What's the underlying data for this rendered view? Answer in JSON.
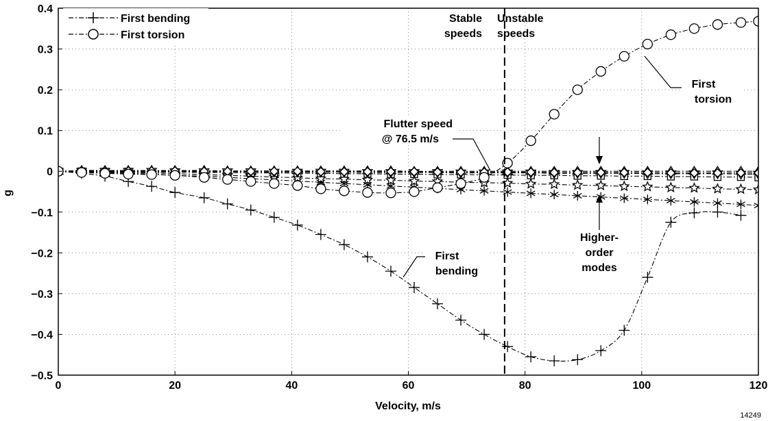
{
  "chart_data": {
    "type": "line",
    "xlabel": "Velocity, m/s",
    "ylabel": "g",
    "xlim": [
      0,
      120
    ],
    "ylim": [
      -0.5,
      0.4
    ],
    "x_ticks": [
      "0",
      "20",
      "40",
      "60",
      "80",
      "100",
      "120"
    ],
    "y_ticks": [
      "0.4",
      "0.3",
      "0.2",
      "0.1",
      "0",
      "−0.1",
      "−0.2",
      "−0.3",
      "−0.4",
      "−0.5"
    ],
    "grid": true,
    "legend_position": "top-left",
    "figure_number": "14249",
    "flutter_speed": 76.5,
    "series": [
      {
        "name": "First bending",
        "marker": "plus",
        "x": [
          0,
          4,
          8,
          12,
          16,
          20,
          25,
          29,
          33,
          37,
          41,
          45,
          49,
          53,
          57,
          61,
          65,
          69,
          73,
          77,
          81,
          85,
          89,
          93,
          97,
          101,
          105,
          109,
          113,
          117
        ],
        "y": [
          0,
          -0.005,
          -0.012,
          -0.025,
          -0.037,
          -0.052,
          -0.065,
          -0.08,
          -0.095,
          -0.113,
          -0.132,
          -0.155,
          -0.18,
          -0.21,
          -0.245,
          -0.285,
          -0.325,
          -0.365,
          -0.4,
          -0.43,
          -0.455,
          -0.465,
          -0.462,
          -0.44,
          -0.39,
          -0.26,
          -0.125,
          -0.102,
          -0.1,
          -0.108
        ]
      },
      {
        "name": "First torsion",
        "marker": "circle",
        "x": [
          0,
          4,
          8,
          12,
          16,
          20,
          25,
          29,
          33,
          37,
          41,
          45,
          49,
          53,
          57,
          61,
          65,
          69,
          73,
          77,
          81,
          85,
          89,
          93,
          97,
          101,
          105,
          109,
          113,
          117,
          120
        ],
        "y": [
          0,
          -0.003,
          -0.005,
          -0.007,
          -0.008,
          -0.01,
          -0.015,
          -0.02,
          -0.025,
          -0.03,
          -0.035,
          -0.043,
          -0.048,
          -0.052,
          -0.053,
          -0.05,
          -0.04,
          -0.03,
          -0.015,
          0.02,
          0.075,
          0.14,
          0.2,
          0.245,
          0.282,
          0.312,
          0.335,
          0.35,
          0.36,
          0.365,
          0.368
        ]
      },
      {
        "name": "",
        "marker": "asterisk",
        "x": [
          0,
          4,
          8,
          12,
          16,
          20,
          25,
          29,
          33,
          37,
          41,
          45,
          49,
          53,
          57,
          61,
          65,
          69,
          73,
          77,
          81,
          85,
          89,
          93,
          97,
          101,
          105,
          109,
          113,
          117,
          120
        ],
        "y": [
          0,
          -0.001,
          -0.003,
          -0.005,
          -0.007,
          -0.01,
          -0.012,
          -0.015,
          -0.018,
          -0.021,
          -0.024,
          -0.027,
          -0.03,
          -0.033,
          -0.036,
          -0.039,
          -0.042,
          -0.045,
          -0.048,
          -0.051,
          -0.054,
          -0.057,
          -0.06,
          -0.063,
          -0.066,
          -0.069,
          -0.072,
          -0.075,
          -0.078,
          -0.081,
          -0.084
        ]
      },
      {
        "name": "",
        "marker": "star",
        "x": [
          0,
          4,
          8,
          12,
          16,
          20,
          25,
          29,
          33,
          37,
          41,
          45,
          49,
          53,
          57,
          61,
          65,
          69,
          73,
          77,
          81,
          85,
          89,
          93,
          97,
          101,
          105,
          109,
          113,
          117,
          120
        ],
        "y": [
          0,
          -0.001,
          -0.002,
          -0.003,
          -0.004,
          -0.006,
          -0.008,
          -0.01,
          -0.012,
          -0.014,
          -0.016,
          -0.018,
          -0.019,
          -0.021,
          -0.022,
          -0.024,
          -0.025,
          -0.027,
          -0.028,
          -0.029,
          -0.031,
          -0.032,
          -0.034,
          -0.035,
          -0.037,
          -0.038,
          -0.04,
          -0.041,
          -0.043,
          -0.044,
          -0.045
        ]
      },
      {
        "name": "",
        "marker": "square",
        "x": [
          0,
          4,
          8,
          12,
          16,
          20,
          25,
          29,
          33,
          37,
          41,
          45,
          49,
          53,
          57,
          61,
          65,
          69,
          73,
          77,
          81,
          85,
          89,
          93,
          97,
          101,
          105,
          109,
          113,
          117,
          120
        ],
        "y": [
          0,
          0,
          -0.001,
          -0.001,
          -0.002,
          -0.002,
          -0.003,
          -0.003,
          -0.004,
          -0.004,
          -0.005,
          -0.005,
          -0.006,
          -0.006,
          -0.007,
          -0.007,
          -0.008,
          -0.008,
          -0.009,
          -0.009,
          -0.01,
          -0.01,
          -0.011,
          -0.011,
          -0.012,
          -0.012,
          -0.013,
          -0.013,
          -0.014,
          -0.014,
          -0.015
        ]
      },
      {
        "name": "",
        "marker": "triangle-down",
        "x": [
          0,
          4,
          8,
          12,
          16,
          20,
          25,
          29,
          33,
          37,
          41,
          45,
          49,
          53,
          57,
          61,
          65,
          69,
          73,
          77,
          81,
          85,
          89,
          93,
          97,
          101,
          105,
          109,
          113,
          117,
          120
        ],
        "y": [
          0,
          0,
          0,
          0,
          0,
          -0.001,
          -0.001,
          -0.001,
          -0.001,
          -0.002,
          -0.002,
          -0.002,
          -0.002,
          -0.003,
          -0.003,
          -0.003,
          -0.003,
          -0.004,
          -0.004,
          -0.004,
          -0.004,
          -0.005,
          -0.005,
          -0.005,
          -0.005,
          -0.006,
          -0.006,
          -0.006,
          -0.006,
          -0.007,
          -0.007
        ]
      },
      {
        "name": "",
        "marker": "triangle-up",
        "x": [
          0,
          4,
          8,
          12,
          16,
          20,
          25,
          29,
          33,
          37,
          41,
          45,
          49,
          53,
          57,
          61,
          65,
          69,
          73,
          77,
          81,
          85,
          89,
          93,
          97,
          101,
          105,
          109,
          113,
          117,
          120
        ],
        "y": [
          0,
          0.002,
          0.002,
          0.002,
          0.002,
          0.002,
          0.002,
          0.001,
          0.001,
          0.001,
          0.001,
          0.001,
          0.001,
          0.001,
          0.001,
          0,
          0,
          0,
          0,
          0,
          0,
          0,
          0,
          0,
          0,
          0,
          0,
          0,
          0,
          0,
          0
        ]
      },
      {
        "name": "",
        "marker": "diamond",
        "x": [
          0,
          4,
          8,
          12,
          16,
          20,
          25,
          29,
          33,
          37,
          41,
          45,
          49,
          53,
          57,
          61,
          65,
          69,
          73,
          77,
          81,
          85,
          89,
          93,
          97,
          101,
          105,
          109,
          113,
          117,
          120
        ],
        "y": [
          0,
          0.001,
          0.001,
          0.001,
          0.001,
          0.001,
          0,
          0,
          0,
          0,
          0,
          -0.001,
          -0.001,
          -0.001,
          -0.001,
          -0.001,
          -0.002,
          -0.002,
          -0.002,
          -0.002,
          -0.002,
          -0.003,
          -0.003,
          -0.003,
          -0.003,
          -0.003,
          -0.004,
          -0.004,
          -0.004,
          -0.004,
          -0.004
        ]
      }
    ],
    "annotations": {
      "stable": [
        "Stable",
        "speeds"
      ],
      "unstable": [
        "Unstable",
        "speeds"
      ],
      "flutter": [
        "Flutter speed",
        "@ 76.5 m/s"
      ],
      "first_bending": [
        "First",
        "bending"
      ],
      "first_torsion": [
        "First",
        "torsion"
      ],
      "higher_modes": [
        "Higher-",
        "order",
        "modes"
      ]
    }
  }
}
